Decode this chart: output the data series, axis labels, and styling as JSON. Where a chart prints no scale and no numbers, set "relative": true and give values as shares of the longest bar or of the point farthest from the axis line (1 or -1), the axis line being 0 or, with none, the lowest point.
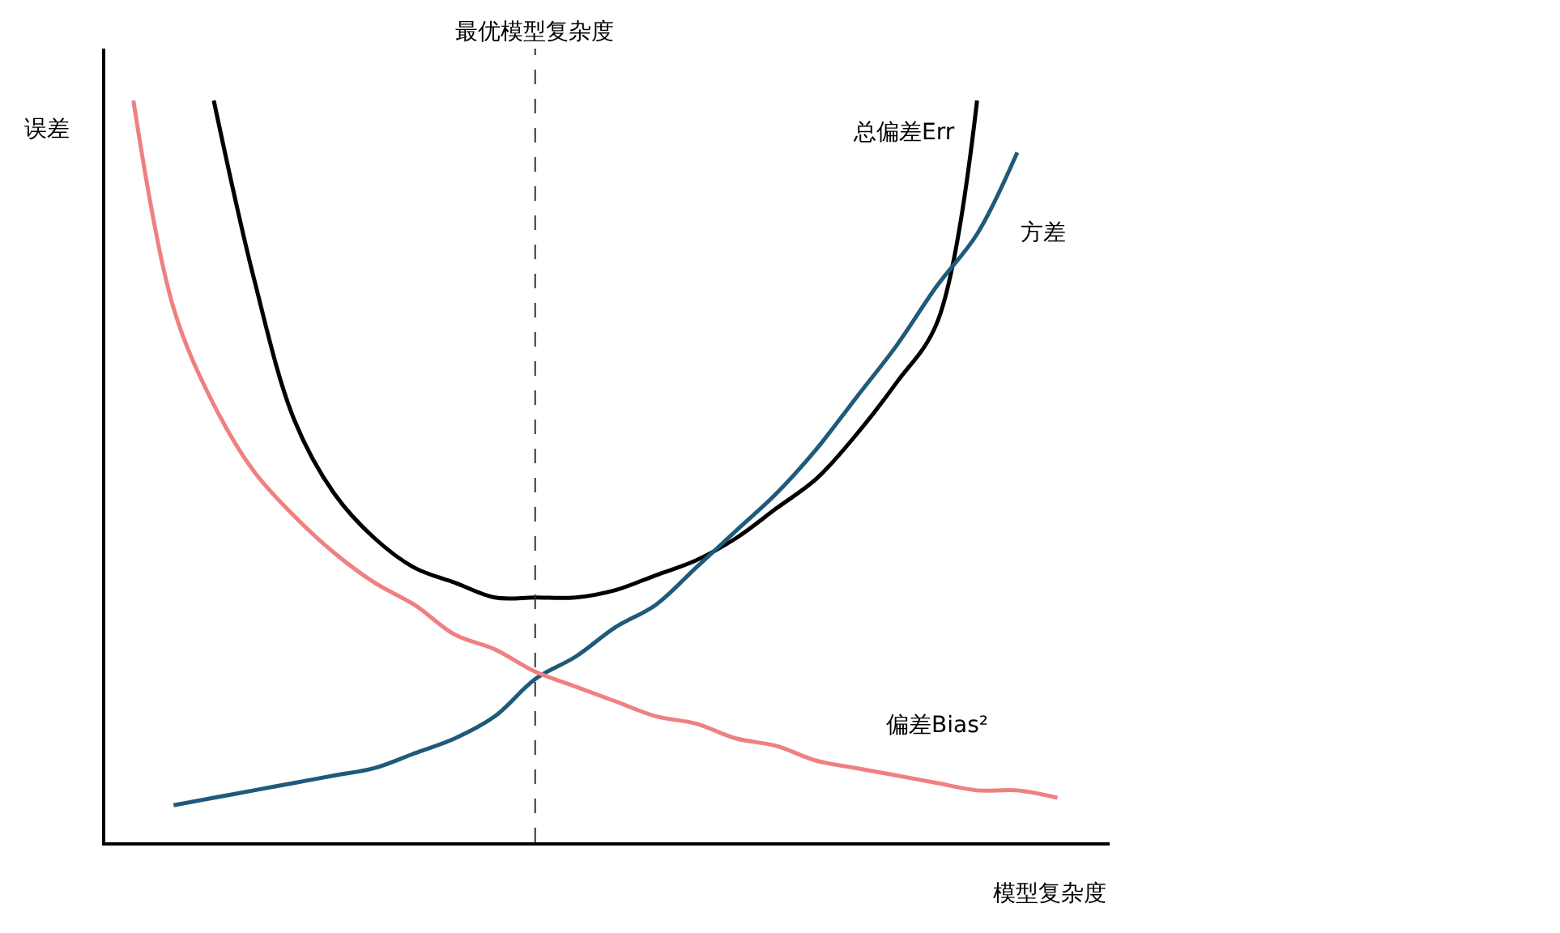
{
  "chart_data": {
    "type": "line",
    "relative": true,
    "xlabel": "模型复杂度",
    "ylabel": "误差",
    "categories": [
      null,
      null,
      null,
      null,
      null,
      null,
      null,
      null,
      null,
      null,
      null,
      null,
      null,
      null,
      null,
      null,
      null,
      null,
      null,
      null,
      null,
      null,
      null,
      null,
      null
    ],
    "series": [
      {
        "name": "总偏差Err",
        "color": "#000000",
        "values": [
          null,
          null,
          1.0,
          0.76,
          0.57,
          0.47,
          0.41,
          0.37,
          0.35,
          0.33,
          0.33,
          0.33,
          0.34,
          0.36,
          0.38,
          0.41,
          0.45,
          0.49,
          0.55,
          0.62,
          0.7,
          1.0,
          null,
          null,
          null
        ]
      },
      {
        "name": "方差",
        "color": "#1f5a7a",
        "values": [
          null,
          0.05,
          0.06,
          0.07,
          0.08,
          0.09,
          0.1,
          0.12,
          0.14,
          0.17,
          0.22,
          0.25,
          0.29,
          0.32,
          0.37,
          0.42,
          0.47,
          0.53,
          0.6,
          0.67,
          0.75,
          0.82,
          0.93,
          null,
          null
        ]
      },
      {
        "name": "偏差Bias²",
        "color": "#f08080",
        "values": [
          1.0,
          0.72,
          0.59,
          0.5,
          0.44,
          0.39,
          0.35,
          0.32,
          0.28,
          0.26,
          0.23,
          0.21,
          0.19,
          0.17,
          0.16,
          0.14,
          0.13,
          0.11,
          0.1,
          0.09,
          0.08,
          0.07,
          0.07,
          0.06,
          null
        ]
      }
    ],
    "annotations": [
      "最优模型复杂度"
    ],
    "legend": false,
    "marker": "none",
    "line_style": "solid"
  }
}
